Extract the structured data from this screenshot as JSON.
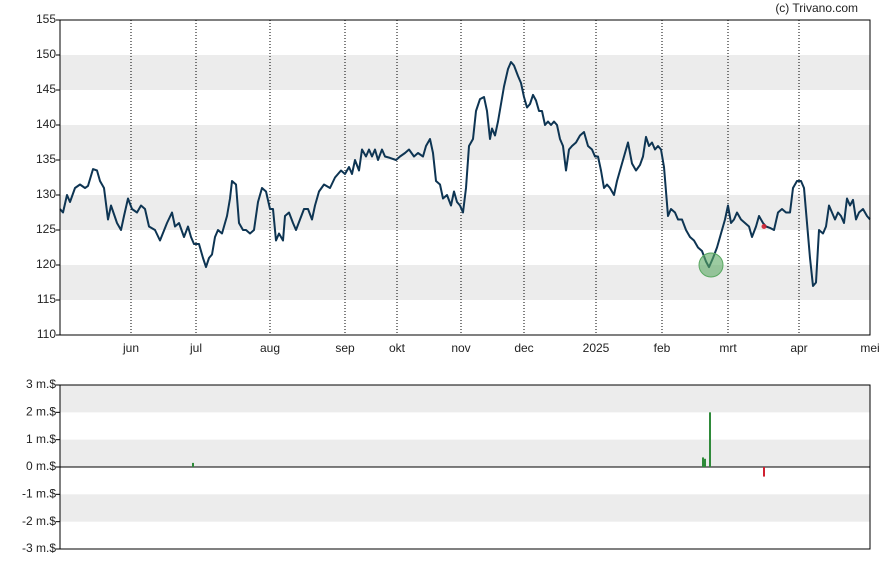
{
  "credit": "(c) Trivano.com",
  "chart_data": [
    {
      "type": "line",
      "xlim": [
        0,
        810
      ],
      "xticks": [
        {
          "value": 71,
          "label": "jun"
        },
        {
          "value": 136,
          "label": "jul"
        },
        {
          "value": 210,
          "label": "aug"
        },
        {
          "value": 285,
          "label": "sep"
        },
        {
          "value": 337,
          "label": "okt"
        },
        {
          "value": 401,
          "label": "nov"
        },
        {
          "value": 464,
          "label": "dec"
        },
        {
          "value": 536,
          "label": "2025"
        },
        {
          "value": 602,
          "label": "feb"
        },
        {
          "value": 668,
          "label": "mrt"
        },
        {
          "value": 739,
          "label": "apr"
        },
        {
          "value": 810,
          "label": "mei"
        }
      ],
      "ylim": [
        110,
        155
      ],
      "yticks": [
        110,
        115,
        120,
        125,
        130,
        135,
        140,
        145,
        150,
        155
      ],
      "grid": true,
      "x": [
        0,
        3,
        7,
        10,
        15,
        20,
        25,
        28,
        33,
        37,
        40,
        44,
        48,
        51,
        57,
        61,
        64,
        68,
        72,
        77,
        81,
        85,
        89,
        95,
        100,
        107,
        112,
        115,
        119,
        124,
        128,
        131,
        134,
        139,
        143,
        146,
        149,
        152,
        155,
        158,
        162,
        167,
        170,
        172,
        176,
        179,
        183,
        186,
        190,
        194,
        198,
        202,
        206,
        210,
        213,
        216,
        219,
        223,
        225,
        229,
        233,
        236,
        240,
        244,
        248,
        252,
        255,
        259,
        264,
        270,
        275,
        281,
        285,
        289,
        292,
        295,
        299,
        302,
        306,
        309,
        312,
        315,
        318,
        322,
        325,
        330,
        336,
        340,
        345,
        349,
        354,
        358,
        363,
        366,
        370,
        373,
        376,
        380,
        383,
        387,
        391,
        394,
        397,
        400,
        403,
        406,
        409,
        413,
        416,
        420,
        424,
        427,
        430,
        432,
        435,
        438,
        441,
        444,
        448,
        451,
        454,
        458,
        461,
        464,
        467,
        470,
        473,
        476,
        479,
        482,
        485,
        488,
        491,
        494,
        497,
        500,
        503,
        506,
        509,
        512,
        516,
        520,
        524,
        528,
        532,
        535,
        538,
        541,
        544,
        547,
        550,
        554,
        557,
        560,
        564,
        568,
        572,
        576,
        580,
        583,
        586,
        589,
        592,
        595,
        598,
        601,
        604,
        608,
        611,
        615,
        618,
        622,
        626,
        630,
        634,
        638,
        642,
        646,
        649,
        653,
        657,
        661,
        665,
        668,
        671,
        674,
        677,
        681,
        685,
        689,
        692,
        696,
        699,
        703,
        706,
        710,
        714,
        718,
        722,
        726,
        730,
        733,
        737,
        741,
        744,
        747,
        750,
        753,
        756,
        759,
        763,
        766,
        769,
        772,
        775,
        778,
        781,
        784,
        787,
        790,
        793,
        796,
        799,
        803,
        807,
        810
      ],
      "series": [
        {
          "color": "#0e3553",
          "values": [
            128,
            127.5,
            130,
            129,
            131,
            131.5,
            131,
            131.3,
            133.7,
            133.5,
            132,
            131,
            126.5,
            128.5,
            126,
            125,
            127,
            129.5,
            128,
            127.5,
            128.5,
            128,
            125.5,
            125,
            123.5,
            126,
            127.5,
            125.5,
            126,
            124,
            125.5,
            124,
            123,
            123,
            121,
            119.7,
            121,
            121.5,
            124,
            125,
            124.5,
            127,
            129.5,
            132,
            131.5,
            126,
            125,
            125,
            124.5,
            125,
            129,
            131,
            130.5,
            128,
            128,
            123.5,
            124.5,
            123.5,
            127,
            127.5,
            126,
            125,
            126.5,
            128,
            128,
            126.5,
            128.5,
            130.5,
            131.5,
            131,
            132.5,
            133.5,
            133,
            134,
            133,
            135,
            133.5,
            136.5,
            135.5,
            136.5,
            135.5,
            136.5,
            135,
            136.5,
            135.5,
            135.3,
            135,
            135.5,
            136,
            136.5,
            135.5,
            136,
            135.5,
            137,
            138,
            136,
            132,
            131.5,
            129.5,
            130,
            128.5,
            130.5,
            129,
            128.5,
            127.5,
            131,
            137,
            138,
            142,
            143.7,
            144,
            142,
            138,
            139.5,
            138.5,
            140.5,
            143,
            145.5,
            148,
            149,
            148.5,
            147,
            146,
            144,
            142.5,
            143,
            144.3,
            143.5,
            142,
            142,
            140,
            140.5,
            140,
            140.5,
            140,
            138,
            137,
            133.5,
            136.5,
            137,
            137.5,
            138.5,
            139,
            137,
            136.5,
            135.5,
            135.5,
            133.5,
            131,
            131.5,
            131,
            130,
            132,
            133.5,
            135.5,
            137.5,
            134.5,
            133.5,
            134.3,
            135.5,
            138.3,
            137,
            137.5,
            136.5,
            137,
            136.5,
            134,
            127,
            128,
            127.5,
            126.5,
            126.5,
            125,
            124,
            123.5,
            122.5,
            122,
            120.5,
            119.7,
            121,
            122.5,
            124.5,
            126.5,
            128.5,
            126,
            126.5,
            127.5,
            126.5,
            126,
            125.5,
            124,
            125.5,
            127,
            126,
            125.5,
            125.3,
            125,
            127.5,
            128,
            127.5,
            127.5,
            131,
            132,
            132,
            131,
            126,
            121,
            117,
            117.5,
            125,
            124.5,
            125.5,
            128.5,
            127.5,
            126.5,
            127.5,
            127,
            126,
            129.5,
            128.5,
            129.3,
            126.5,
            127.5,
            128,
            127,
            126.5
          ]
        }
      ],
      "markers": [
        {
          "x": 651,
          "y": 120,
          "color": "#5aa862"
        },
        {
          "x": 704,
          "y": 125.5,
          "color": "#d02030"
        }
      ]
    },
    {
      "type": "bar",
      "xlim": [
        0,
        810
      ],
      "ylim": [
        -3,
        3
      ],
      "yticks": [
        {
          "value": 3,
          "label": "3 m.$"
        },
        {
          "value": 2,
          "label": "2 m.$"
        },
        {
          "value": 1,
          "label": "1 m.$"
        },
        {
          "value": 0,
          "label": "0 m.$"
        },
        {
          "value": -1,
          "label": "-1 m.$"
        },
        {
          "value": -2,
          "label": "-2 m.$"
        },
        {
          "value": -3,
          "label": "-3 m.$"
        }
      ],
      "grid": true,
      "x": [
        133,
        643,
        645,
        650,
        704
      ],
      "values": [
        0.15,
        0.35,
        0.3,
        2.0,
        -0.35
      ],
      "colors": [
        "#2f8a3a",
        "#2f8a3a",
        "#2f8a3a",
        "#2f8a3a",
        "#d02030"
      ]
    }
  ]
}
